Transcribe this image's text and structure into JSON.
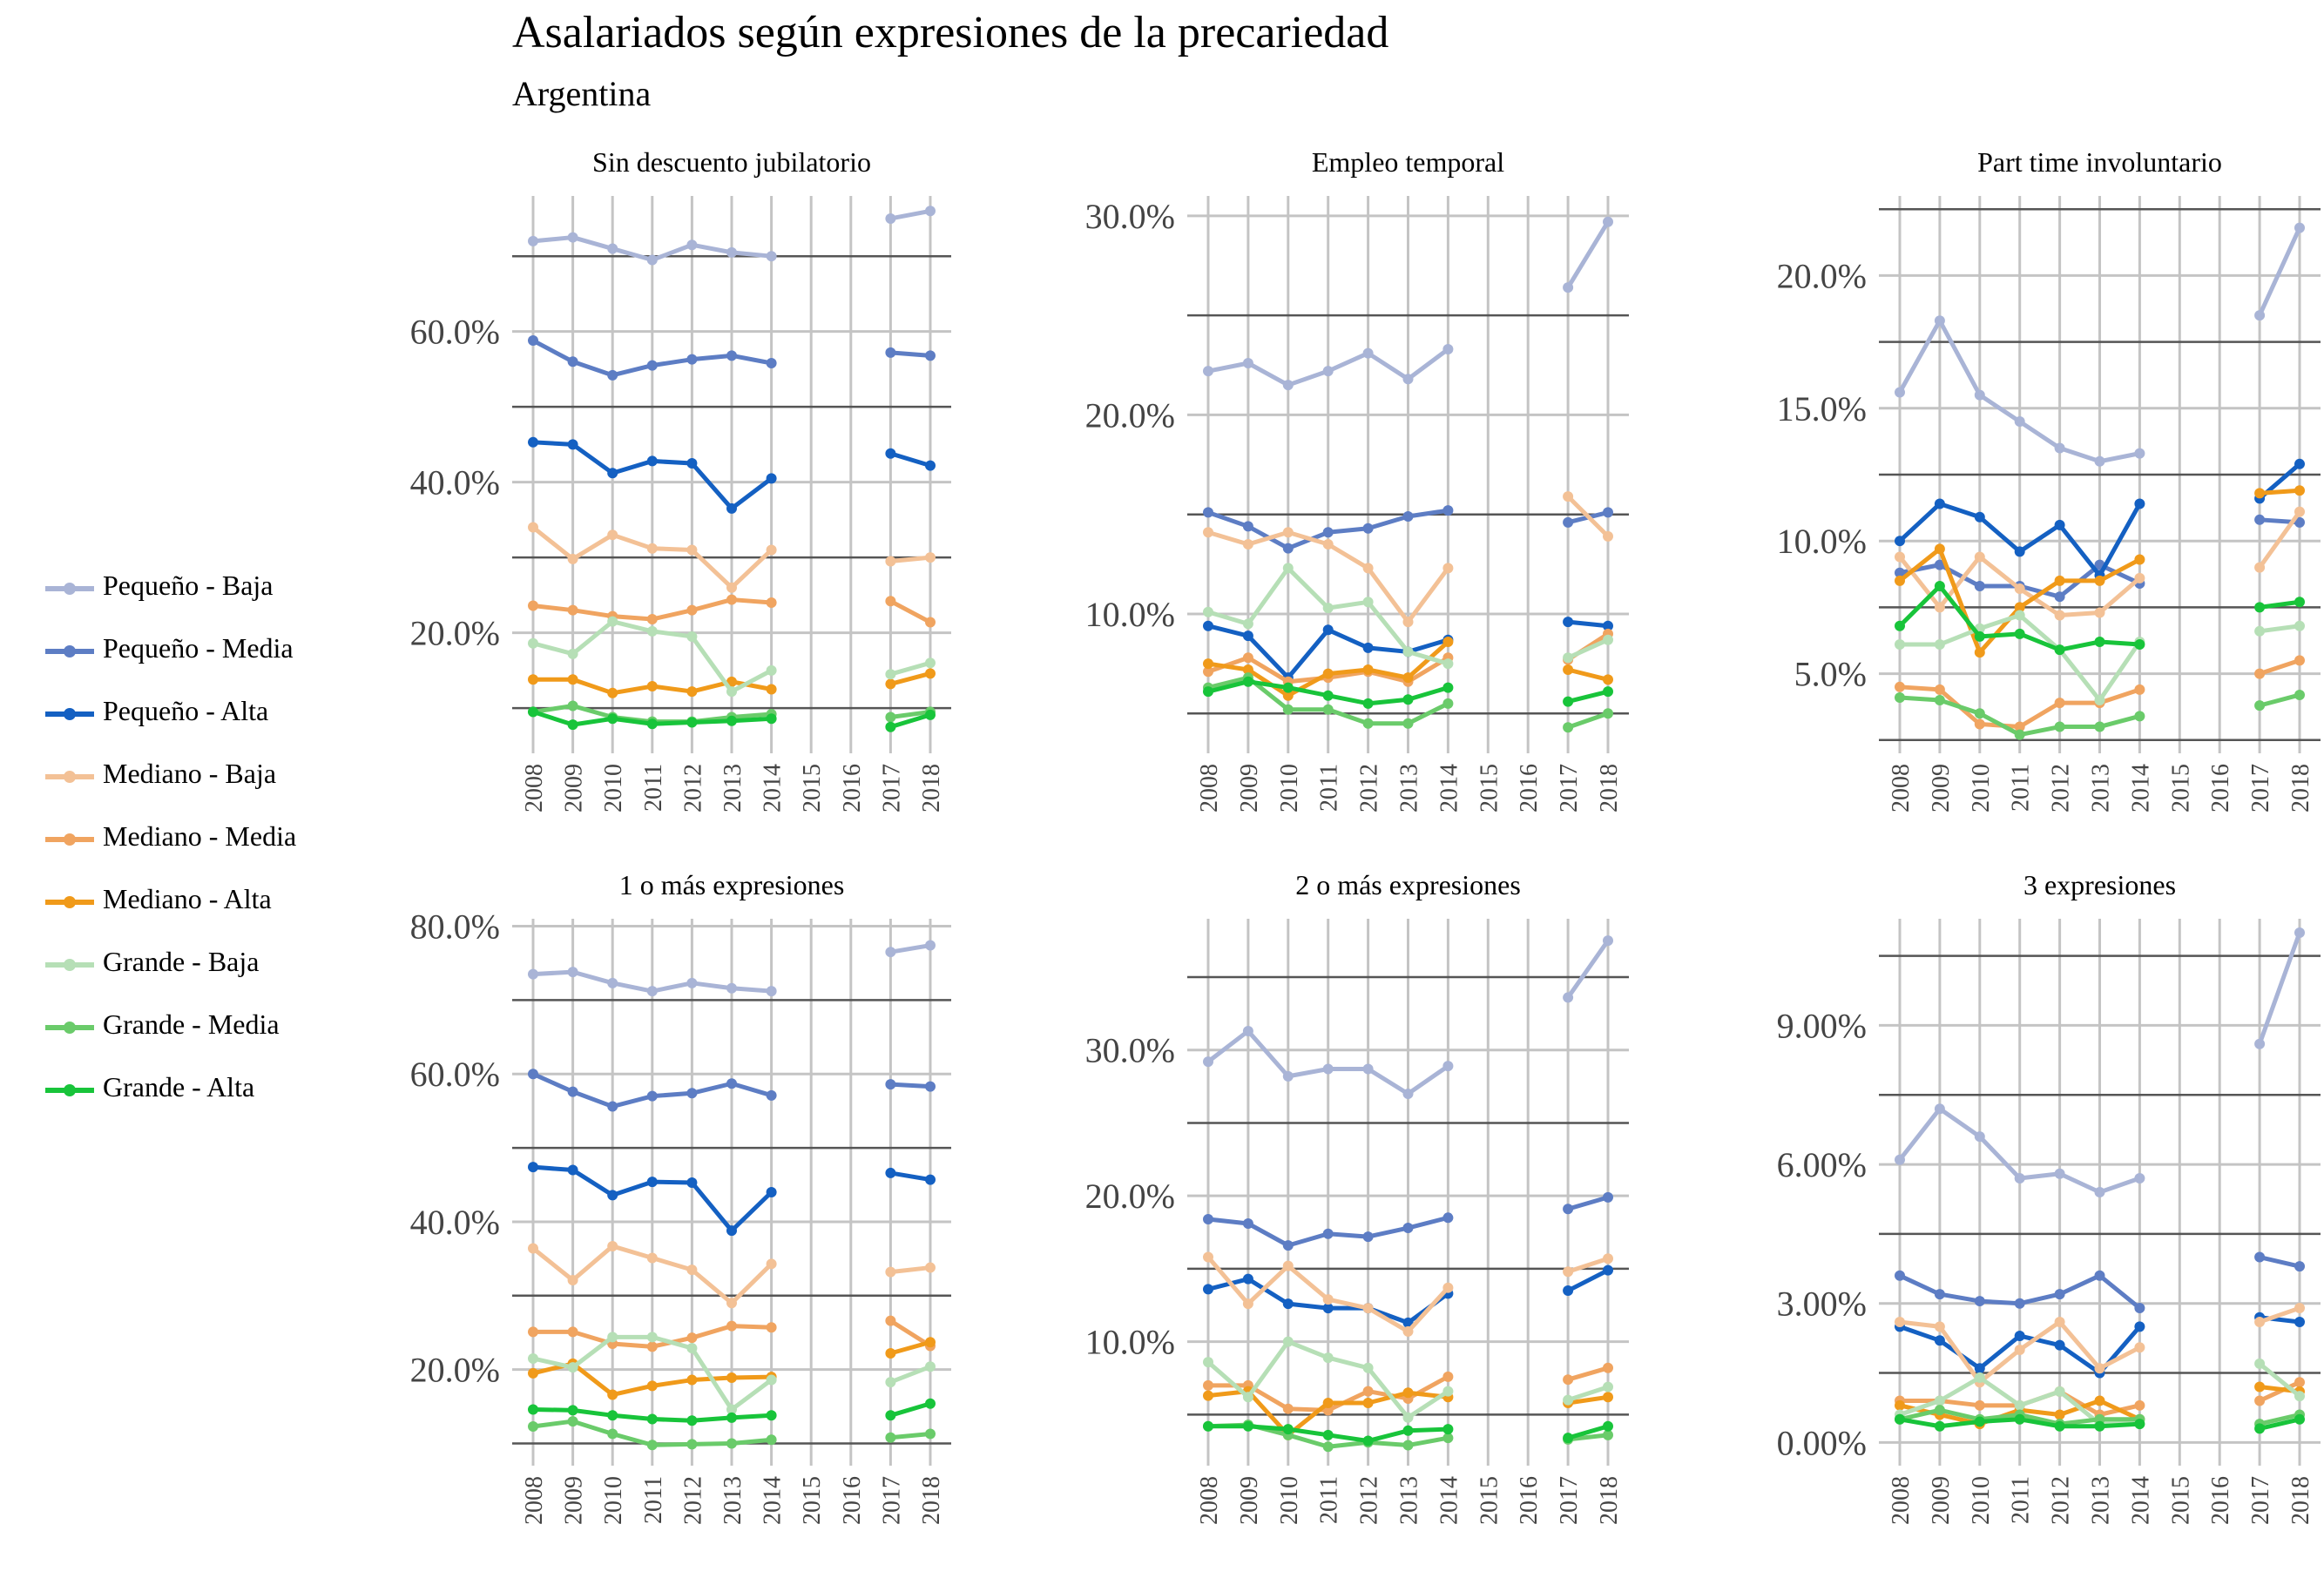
{
  "title": "Asalariados según expresiones de la precariedad",
  "subtitle": "Argentina",
  "legend": [
    {
      "label": "Pequeño - Baja",
      "color": "#a9b4d6"
    },
    {
      "label": "Pequeño - Media",
      "color": "#5d7dc4"
    },
    {
      "label": "Pequeño - Alta",
      "color": "#1460c2"
    },
    {
      "label": "Mediano - Baja",
      "color": "#f3c196"
    },
    {
      "label": "Mediano - Media",
      "color": "#f0a460"
    },
    {
      "label": "Mediano - Alta",
      "color": "#f09a1a"
    },
    {
      "label": "Grande - Baja",
      "color": "#b6dfb6"
    },
    {
      "label": "Grande - Media",
      "color": "#6acb6a"
    },
    {
      "label": "Grande - Alta",
      "color": "#18c43a"
    }
  ],
  "chart_data": {
    "type": "line",
    "x": [
      "2008",
      "2009",
      "2010",
      "2011",
      "2012",
      "2013",
      "2014",
      "2015",
      "2016",
      "2017",
      "2018"
    ],
    "series_names": [
      "Pequeño - Baja",
      "Pequeño - Media",
      "Pequeño - Alta",
      "Mediano - Baja",
      "Mediano - Media",
      "Mediano - Alta",
      "Grande - Baja",
      "Grande - Media",
      "Grande - Alta"
    ],
    "facets": [
      {
        "title": "Sin descuento jubilatorio",
        "yticks": [
          {
            "v": 20,
            "label": "20.0%"
          },
          {
            "v": 40,
            "label": "40.0%"
          },
          {
            "v": 60,
            "label": "60.0%"
          }
        ],
        "ylim": [
          4,
          78
        ],
        "series": [
          [
            72,
            72.5,
            71,
            69.5,
            71.5,
            70.5,
            70,
            null,
            null,
            75,
            76
          ],
          [
            58.8,
            56,
            54.2,
            55.5,
            56.3,
            56.8,
            55.8,
            null,
            null,
            57.2,
            56.8
          ],
          [
            45.3,
            45,
            41.2,
            42.8,
            42.5,
            36.5,
            40.5,
            null,
            null,
            43.8,
            42.2
          ],
          [
            34,
            29.8,
            33,
            31.2,
            31,
            26,
            31,
            null,
            null,
            29.5,
            30
          ],
          [
            23.6,
            23,
            22.2,
            21.8,
            23,
            24.4,
            24,
            null,
            null,
            24.2,
            21.4
          ],
          [
            13.8,
            13.8,
            12,
            12.9,
            12.2,
            13.5,
            12.5,
            null,
            null,
            13.2,
            14.6
          ],
          [
            18.6,
            17.2,
            21.5,
            20.2,
            19.5,
            12.2,
            15,
            null,
            null,
            14.5,
            16
          ],
          [
            9.5,
            10.3,
            8.8,
            8.2,
            8.2,
            8.8,
            9.2,
            null,
            null,
            8.8,
            9.5
          ],
          [
            9.5,
            7.8,
            8.6,
            7.9,
            8.1,
            8.3,
            8.6,
            null,
            null,
            7.5,
            9.1
          ]
        ]
      },
      {
        "title": "Empleo temporal",
        "yticks": [
          {
            "v": 10,
            "label": "10.0%"
          },
          {
            "v": 20,
            "label": "20.0%"
          },
          {
            "v": 30,
            "label": "30.0%"
          }
        ],
        "ylim": [
          3,
          31
        ],
        "series": [
          [
            22.2,
            22.6,
            21.5,
            22.2,
            23.1,
            21.8,
            23.3,
            null,
            null,
            26.4,
            29.7
          ],
          [
            15.1,
            14.4,
            13.3,
            14.1,
            14.3,
            14.9,
            15.2,
            null,
            null,
            14.6,
            15.1
          ],
          [
            9.4,
            8.9,
            6.8,
            9.2,
            8.3,
            8.1,
            8.7,
            null,
            null,
            9.6,
            9.4
          ],
          [
            14.1,
            13.5,
            14.1,
            13.5,
            12.3,
            9.6,
            12.3,
            null,
            null,
            15.9,
            13.9
          ],
          [
            7.1,
            7.8,
            6.6,
            6.8,
            7.1,
            6.6,
            7.8,
            null,
            null,
            7.7,
            9.0
          ],
          [
            7.5,
            7.2,
            5.9,
            7,
            7.2,
            6.8,
            8.6,
            null,
            null,
            7.2,
            6.7
          ],
          [
            10.1,
            9.5,
            12.3,
            10.3,
            10.6,
            8.1,
            7.5,
            null,
            null,
            7.8,
            8.7
          ],
          [
            6.3,
            6.8,
            5.2,
            5.2,
            4.5,
            4.5,
            5.5,
            null,
            null,
            4.3,
            5.0
          ],
          [
            6.1,
            6.6,
            6.3,
            5.9,
            5.5,
            5.7,
            6.3,
            null,
            null,
            5.6,
            6.1
          ]
        ]
      },
      {
        "title": "Part time involuntario",
        "yticks": [
          {
            "v": 5,
            "label": "5.0%"
          },
          {
            "v": 10,
            "label": "10.0%"
          },
          {
            "v": 15,
            "label": "15.0%"
          },
          {
            "v": 20,
            "label": "20.0%"
          }
        ],
        "ylim": [
          2,
          23
        ],
        "series": [
          [
            15.6,
            18.3,
            15.5,
            14.5,
            13.5,
            13,
            13.3,
            null,
            null,
            18.5,
            21.8
          ],
          [
            8.8,
            9.1,
            8.3,
            8.3,
            7.9,
            9.1,
            8.4,
            null,
            null,
            10.8,
            10.7
          ],
          [
            10,
            11.4,
            10.9,
            9.6,
            10.6,
            8.7,
            11.4,
            null,
            null,
            11.6,
            12.9
          ],
          [
            9.4,
            7.5,
            9.4,
            8.2,
            7.2,
            7.3,
            8.6,
            null,
            null,
            9,
            11.1
          ],
          [
            4.5,
            4.4,
            3.1,
            3,
            3.9,
            3.9,
            4.4,
            null,
            null,
            5,
            5.5
          ],
          [
            8.5,
            9.7,
            5.8,
            7.5,
            8.5,
            8.5,
            9.3,
            null,
            null,
            11.8,
            11.9
          ],
          [
            6.1,
            6.1,
            6.7,
            7.2,
            5.9,
            4,
            6.2,
            null,
            null,
            6.6,
            6.8
          ],
          [
            4.1,
            4,
            3.5,
            2.7,
            3,
            3,
            3.4,
            null,
            null,
            3.8,
            4.2
          ],
          [
            6.8,
            8.3,
            6.4,
            6.5,
            5.9,
            6.2,
            6.1,
            null,
            null,
            7.5,
            7.7
          ]
        ]
      },
      {
        "title": "1 o más expresiones",
        "yticks": [
          {
            "v": 20,
            "label": "20.0%"
          },
          {
            "v": 40,
            "label": "40.0%"
          },
          {
            "v": 60,
            "label": "60.0%"
          },
          {
            "v": 80,
            "label": "80.0%"
          }
        ],
        "ylim": [
          7,
          81
        ],
        "series": [
          [
            73.5,
            73.8,
            72.3,
            71.2,
            72.3,
            71.6,
            71.2,
            null,
            null,
            76.5,
            77.4
          ],
          [
            60,
            57.6,
            55.6,
            57,
            57.4,
            58.7,
            57.1,
            null,
            null,
            58.6,
            58.3
          ],
          [
            47.4,
            47,
            43.6,
            45.4,
            45.3,
            38.8,
            44,
            null,
            null,
            46.6,
            45.7
          ],
          [
            36.4,
            32.1,
            36.7,
            35.1,
            33.5,
            29,
            34.3,
            null,
            null,
            33.2,
            33.8
          ],
          [
            25.1,
            25.1,
            23.5,
            23.1,
            24.3,
            25.9,
            25.7,
            null,
            null,
            26.6,
            23.2
          ],
          [
            19.5,
            20.8,
            16.6,
            17.8,
            18.6,
            18.9,
            19,
            null,
            null,
            22.2,
            23.7
          ],
          [
            21.5,
            20.3,
            24.4,
            24.4,
            22.9,
            14.6,
            18.6,
            null,
            null,
            18.3,
            20.4
          ],
          [
            12.3,
            13,
            11.3,
            9.8,
            9.9,
            10,
            10.5,
            null,
            null,
            10.8,
            11.3
          ],
          [
            14.6,
            14.5,
            13.8,
            13.3,
            13.1,
            13.5,
            13.8,
            null,
            null,
            13.8,
            15.4
          ]
        ]
      },
      {
        "title": "2 o más expresiones",
        "yticks": [
          {
            "v": 10,
            "label": "10.0%"
          },
          {
            "v": 20,
            "label": "20.0%"
          },
          {
            "v": 30,
            "label": "30.0%"
          }
        ],
        "ylim": [
          1.5,
          39
        ],
        "series": [
          [
            29.2,
            31.3,
            28.2,
            28.7,
            28.7,
            27,
            28.9,
            null,
            null,
            33.6,
            37.5
          ],
          [
            18.4,
            18.1,
            16.6,
            17.4,
            17.2,
            17.8,
            18.5,
            null,
            null,
            19.1,
            19.9
          ],
          [
            13.6,
            14.3,
            12.6,
            12.3,
            12.3,
            11.3,
            13.3,
            null,
            null,
            13.5,
            14.9
          ],
          [
            15.8,
            12.6,
            15.2,
            12.9,
            12.3,
            10.7,
            13.7,
            null,
            null,
            14.8,
            15.7
          ],
          [
            7,
            7,
            5.4,
            5.3,
            6.6,
            6.1,
            7.6,
            null,
            null,
            7.4,
            8.2
          ],
          [
            6.3,
            6.6,
            3.6,
            5.8,
            5.8,
            6.5,
            6.2,
            null,
            null,
            5.8,
            6.2
          ],
          [
            8.6,
            6.2,
            10,
            8.9,
            8.2,
            4.8,
            6.6,
            null,
            null,
            6,
            6.9
          ],
          [
            4.2,
            4.3,
            3.6,
            2.8,
            3.1,
            2.9,
            3.4,
            null,
            null,
            3.3,
            3.6
          ],
          [
            4.2,
            4.2,
            4,
            3.6,
            3.2,
            3.9,
            4,
            null,
            null,
            3.4,
            4.2
          ]
        ]
      },
      {
        "title": "3 expresiones",
        "yticks": [
          {
            "v": 0,
            "label": "0.00%"
          },
          {
            "v": 3,
            "label": "3.00%"
          },
          {
            "v": 6,
            "label": "6.00%"
          },
          {
            "v": 9,
            "label": "9.00%"
          }
        ],
        "ylim": [
          -0.5,
          11.3
        ],
        "series": [
          [
            6.1,
            7.2,
            6.6,
            5.7,
            5.8,
            5.4,
            5.7,
            null,
            null,
            8.6,
            11
          ],
          [
            3.6,
            3.2,
            3.05,
            3,
            3.2,
            3.6,
            2.9,
            null,
            null,
            4,
            3.8
          ],
          [
            2.5,
            2.2,
            1.6,
            2.3,
            2.1,
            1.5,
            2.5,
            null,
            null,
            2.7,
            2.6
          ],
          [
            2.6,
            2.5,
            1.3,
            2,
            2.6,
            1.6,
            2.05,
            null,
            null,
            2.6,
            2.9
          ],
          [
            0.9,
            0.9,
            0.8,
            0.8,
            1.1,
            0.6,
            0.8,
            null,
            null,
            0.9,
            1.3
          ],
          [
            0.8,
            0.6,
            0.4,
            0.7,
            0.6,
            0.9,
            0.5,
            null,
            null,
            1.2,
            1.1
          ],
          [
            0.6,
            0.9,
            1.4,
            0.8,
            1.1,
            0.4,
            0.5,
            null,
            null,
            1.7,
            1
          ],
          [
            0.5,
            0.7,
            0.5,
            0.6,
            0.4,
            0.5,
            0.5,
            null,
            null,
            0.4,
            0.6
          ],
          [
            0.5,
            0.35,
            0.45,
            0.5,
            0.35,
            0.35,
            0.4,
            null,
            null,
            0.3,
            0.5
          ]
        ]
      }
    ]
  }
}
